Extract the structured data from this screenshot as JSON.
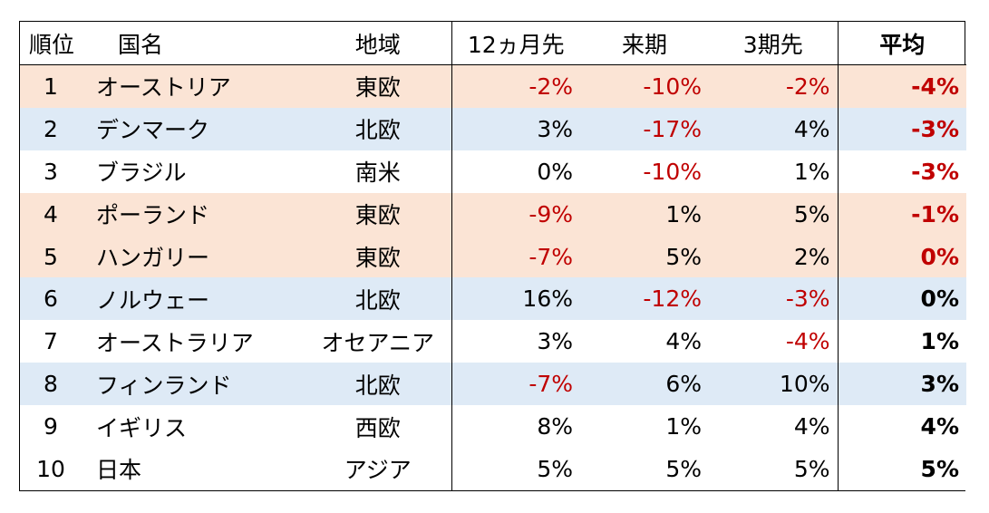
{
  "headers": {
    "rank": "順位",
    "name": "国名",
    "region": "地域",
    "m12": "12ヵ月先",
    "next": "来期",
    "p3": "3期先",
    "avg": "平均"
  },
  "colors": {
    "east_fill": "#fbe4d5",
    "north_fill": "#deeaf6",
    "negative_text": "#c00000",
    "default_text": "#000000"
  },
  "rows": [
    {
      "rank": "1",
      "name": "オーストリア",
      "region": "東欧",
      "m12": "-2%",
      "next": "-10%",
      "p3": "-2%",
      "avg": "-4%",
      "fill": "east",
      "neg": {
        "m12": true,
        "next": true,
        "p3": true,
        "avg": true
      }
    },
    {
      "rank": "2",
      "name": "デンマーク",
      "region": "北欧",
      "m12": "3%",
      "next": "-17%",
      "p3": "4%",
      "avg": "-3%",
      "fill": "north",
      "neg": {
        "m12": false,
        "next": true,
        "p3": false,
        "avg": true
      }
    },
    {
      "rank": "3",
      "name": "ブラジル",
      "region": "南米",
      "m12": "0%",
      "next": "-10%",
      "p3": "1%",
      "avg": "-3%",
      "fill": "plain",
      "neg": {
        "m12": false,
        "next": true,
        "p3": false,
        "avg": true
      }
    },
    {
      "rank": "4",
      "name": "ポーランド",
      "region": "東欧",
      "m12": "-9%",
      "next": "1%",
      "p3": "5%",
      "avg": "-1%",
      "fill": "east",
      "neg": {
        "m12": true,
        "next": false,
        "p3": false,
        "avg": true
      }
    },
    {
      "rank": "5",
      "name": "ハンガリー",
      "region": "東欧",
      "m12": "-7%",
      "next": "5%",
      "p3": "2%",
      "avg": "0%",
      "fill": "east",
      "neg": {
        "m12": true,
        "next": false,
        "p3": false,
        "avg": true
      }
    },
    {
      "rank": "6",
      "name": "ノルウェー",
      "region": "北欧",
      "m12": "16%",
      "next": "-12%",
      "p3": "-3%",
      "avg": "0%",
      "fill": "north",
      "neg": {
        "m12": false,
        "next": true,
        "p3": true,
        "avg": false
      }
    },
    {
      "rank": "7",
      "name": "オーストラリア",
      "region": "オセアニア",
      "m12": "3%",
      "next": "4%",
      "p3": "-4%",
      "avg": "1%",
      "fill": "plain",
      "neg": {
        "m12": false,
        "next": false,
        "p3": true,
        "avg": false
      }
    },
    {
      "rank": "8",
      "name": "フィンランド",
      "region": "北欧",
      "m12": "-7%",
      "next": "6%",
      "p3": "10%",
      "avg": "3%",
      "fill": "north",
      "neg": {
        "m12": true,
        "next": false,
        "p3": false,
        "avg": false
      }
    },
    {
      "rank": "9",
      "name": "イギリス",
      "region": "西欧",
      "m12": "8%",
      "next": "1%",
      "p3": "4%",
      "avg": "4%",
      "fill": "plain",
      "neg": {
        "m12": false,
        "next": false,
        "p3": false,
        "avg": false
      }
    },
    {
      "rank": "10",
      "name": "日本",
      "region": "アジア",
      "m12": "5%",
      "next": "5%",
      "p3": "5%",
      "avg": "5%",
      "fill": "plain",
      "neg": {
        "m12": false,
        "next": false,
        "p3": false,
        "avg": false
      }
    }
  ]
}
